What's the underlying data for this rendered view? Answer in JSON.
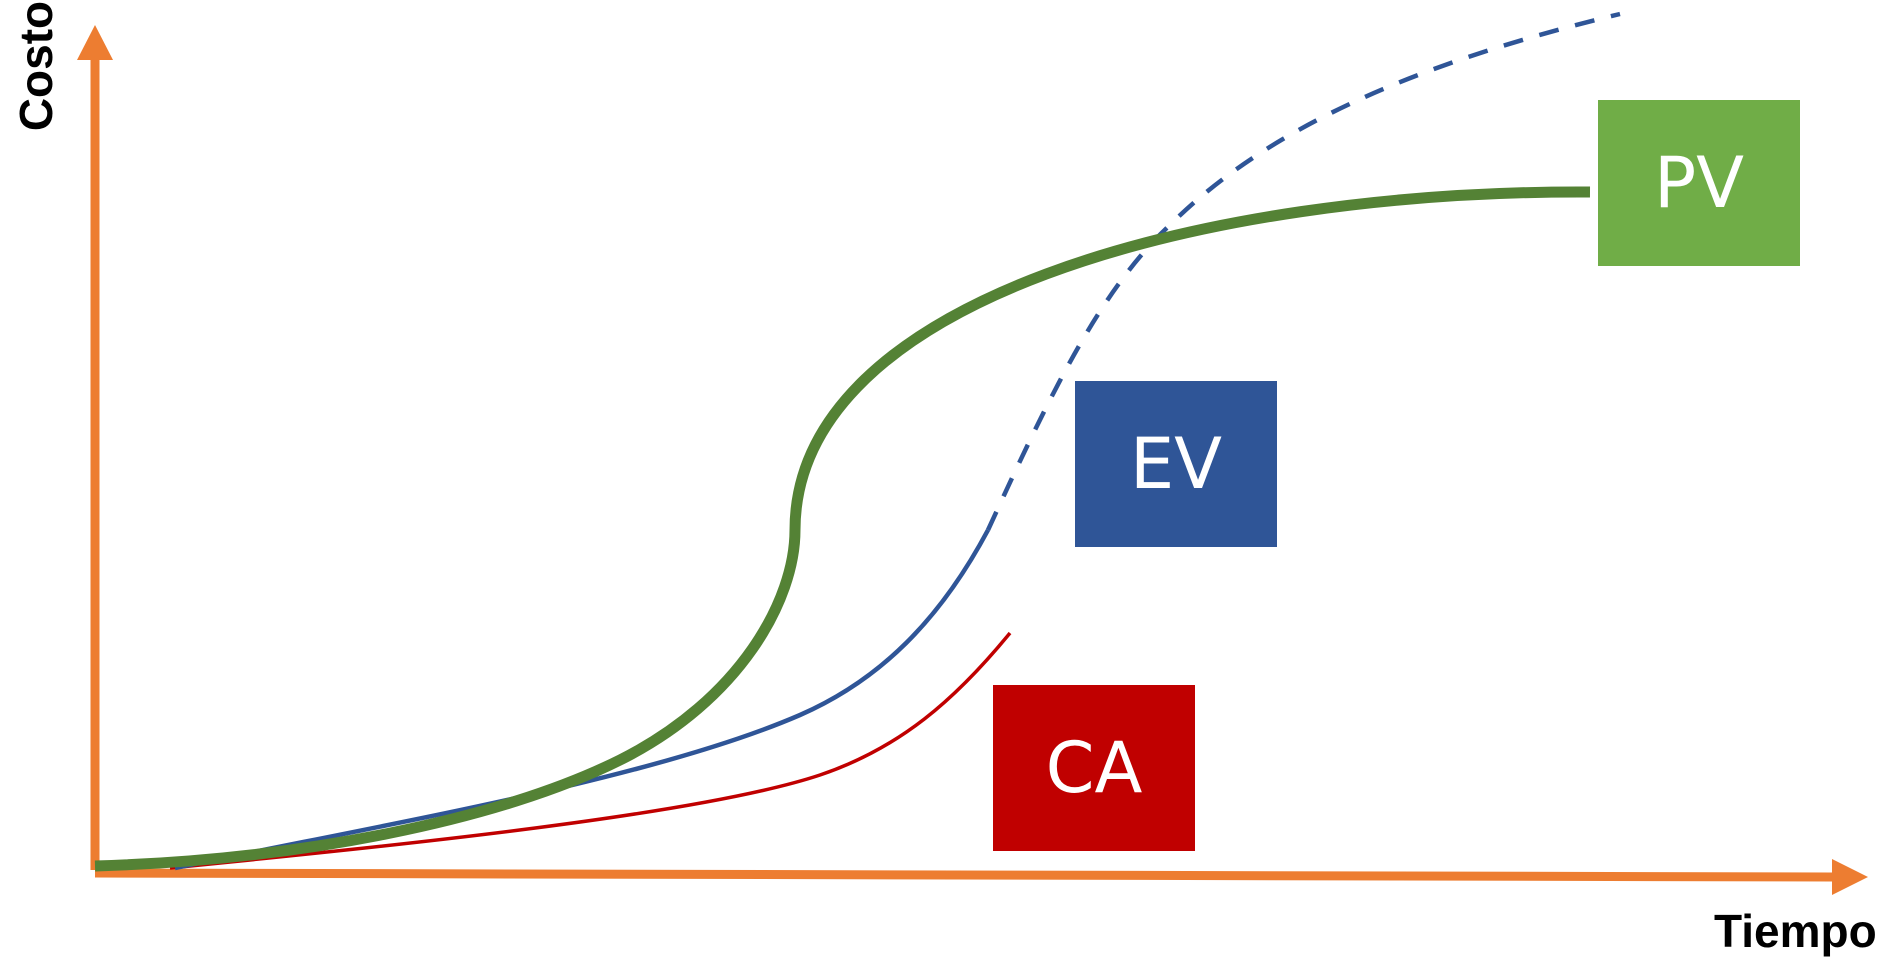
{
  "axes": {
    "y_title": "Costo",
    "x_title": "Tiempo",
    "color": "#ED7D31"
  },
  "legend": {
    "pv": {
      "label": "PV",
      "color": "#70AD47"
    },
    "ev": {
      "label": "EV",
      "color": "#2F5597"
    },
    "ca": {
      "label": "CA",
      "color": "#C00000"
    }
  },
  "curves": {
    "pv_color": "#548235",
    "ev_color": "#2F5597",
    "ca_color": "#C00000"
  }
}
